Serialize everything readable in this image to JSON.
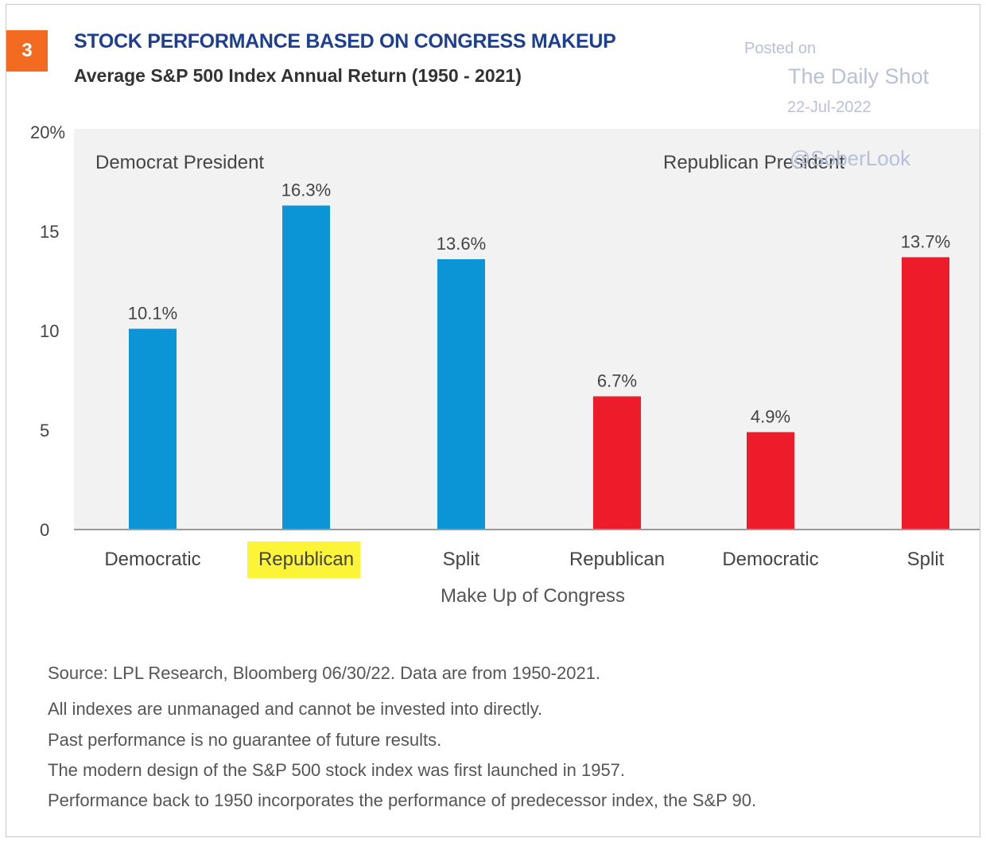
{
  "badge": "3",
  "watermark": {
    "posted_on": "Posted on",
    "source": "The Daily Shot",
    "date": "22-Jul-2022",
    "handle": "@SoberLook"
  },
  "colors": {
    "democrat": "#0b94d6",
    "republican": "#ec1c2b",
    "highlight": "#fbf437",
    "title": "#1d3f8f",
    "plot_bg": "#f2f2f2"
  },
  "chart_data": {
    "type": "bar",
    "title": "STOCK PERFORMANCE BASED ON CONGRESS MAKEUP",
    "subtitle": "Average S&P 500 Index Annual Return (1950 - 2021)",
    "xlabel": "Make Up of Congress",
    "ylabel": "",
    "ylim": [
      0,
      20
    ],
    "yticks": [
      0,
      5,
      10,
      15,
      20
    ],
    "ytick_labels": [
      "0",
      "5",
      "10",
      "15",
      "20%"
    ],
    "grid": false,
    "groups": [
      {
        "name": "Democrat President",
        "color": "#0b94d6",
        "categories": [
          "Democratic",
          "Republican",
          "Split"
        ],
        "values": [
          10.1,
          16.3,
          13.6
        ],
        "labels": [
          "10.1%",
          "16.3%",
          "13.6%"
        ]
      },
      {
        "name": "Republican President",
        "color": "#ec1c2b",
        "categories": [
          "Republican",
          "Democratic",
          "Split"
        ],
        "values": [
          6.7,
          4.9,
          13.7
        ],
        "labels": [
          "6.7%",
          "4.9%",
          "13.7%"
        ]
      }
    ],
    "highlighted_category": "Democrat President / Republican"
  },
  "footer": [
    "Source: LPL Research, Bloomberg 06/30/22. Data are from 1950-2021.",
    "All indexes are unmanaged and cannot be invested into directly.",
    "Past performance is no guarantee of future results.",
    "The modern design of the S&P 500 stock index was first launched in 1957.",
    "Performance back to 1950 incorporates the performance of predecessor index, the S&P 90."
  ]
}
